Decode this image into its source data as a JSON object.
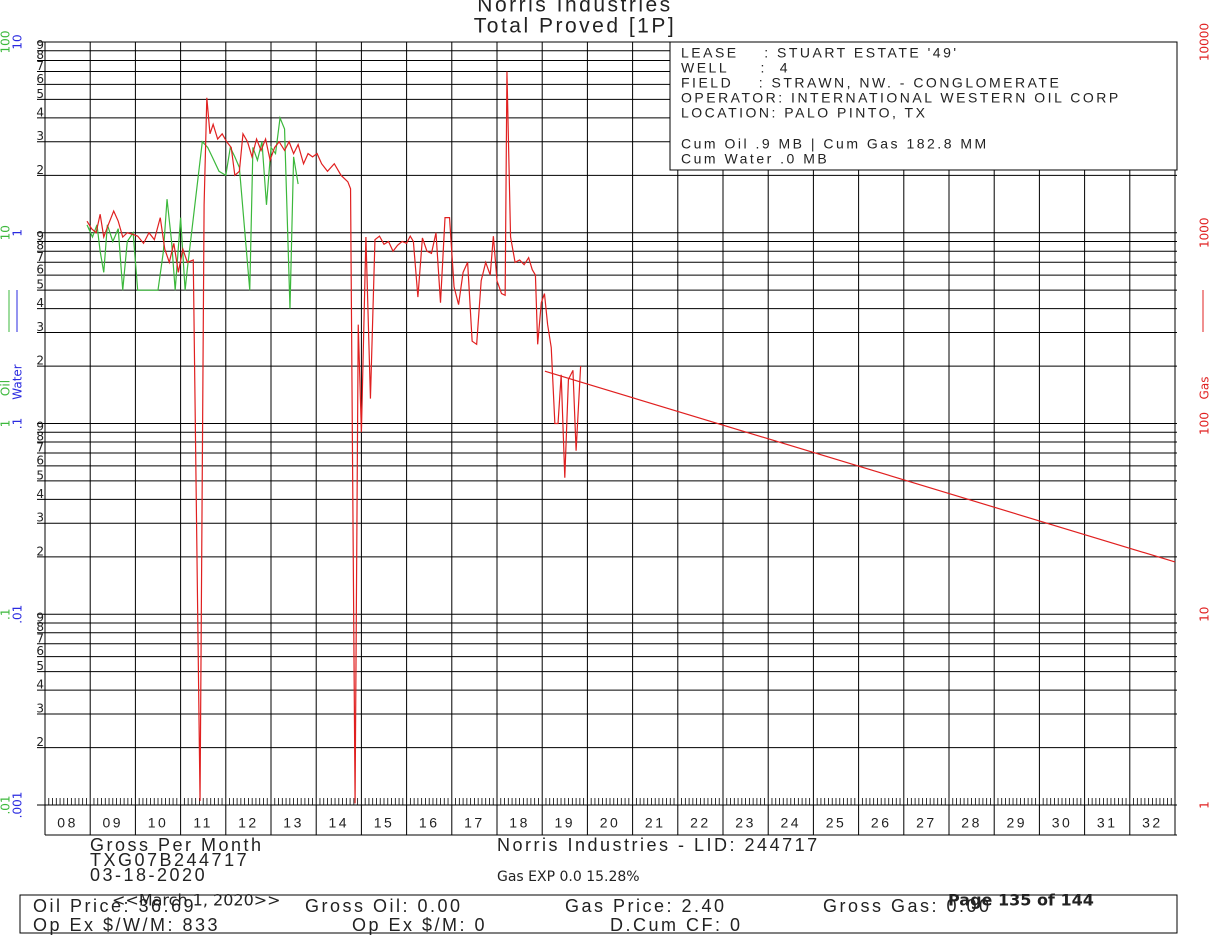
{
  "chart_data": {
    "type": "line",
    "title": "Norris Industries",
    "subtitle": "Total Proved [1P]",
    "log_scale": true,
    "grid": true,
    "xlim": [
      2008,
      2033
    ],
    "xticks": [
      {
        "value": 2008.5,
        "label": "08"
      },
      {
        "value": 2009.5,
        "label": "09"
      },
      {
        "value": 2010.5,
        "label": "10"
      },
      {
        "value": 2011.5,
        "label": "11"
      },
      {
        "value": 2012.5,
        "label": "12"
      },
      {
        "value": 2013.5,
        "label": "13"
      },
      {
        "value": 2014.5,
        "label": "14"
      },
      {
        "value": 2015.5,
        "label": "15"
      },
      {
        "value": 2016.5,
        "label": "16"
      },
      {
        "value": 2017.5,
        "label": "17"
      },
      {
        "value": 2018.5,
        "label": "18"
      },
      {
        "value": 2019.5,
        "label": "19"
      },
      {
        "value": 2020.5,
        "label": "20"
      },
      {
        "value": 2021.5,
        "label": "21"
      },
      {
        "value": 2022.5,
        "label": "22"
      },
      {
        "value": 2023.5,
        "label": "23"
      },
      {
        "value": 2024.5,
        "label": "24"
      },
      {
        "value": 2025.5,
        "label": "25"
      },
      {
        "value": 2026.5,
        "label": "26"
      },
      {
        "value": 2027.5,
        "label": "27"
      },
      {
        "value": 2028.5,
        "label": "28"
      },
      {
        "value": 2029.5,
        "label": "29"
      },
      {
        "value": 2030.5,
        "label": "30"
      },
      {
        "value": 2031.5,
        "label": "31"
      },
      {
        "value": 2032.5,
        "label": "32"
      }
    ],
    "ylabel": "Oil",
    "ylabel_color": "#3cb83c",
    "ylim": [
      0.01,
      100
    ],
    "yticks": [
      100,
      10,
      1,
      {
        "value": 0.1,
        "label": ".1"
      },
      {
        "value": 0.01,
        "label": ".01"
      }
    ],
    "water_axis": {
      "label": "Water",
      "color": "#2a2ae0",
      "ylim": [
        0.001,
        10
      ],
      "yticks": [
        10,
        1,
        {
          "value": 0.1,
          "label": ".1"
        },
        {
          "value": 0.01,
          "label": ".01"
        },
        {
          "value": 0.001,
          "label": ".001"
        }
      ]
    },
    "y2label": "Gas",
    "y2label_color": "#e02020",
    "y2lim": [
      1,
      10000
    ],
    "y2ticks": [
      10000,
      1000,
      100,
      10,
      1
    ],
    "minor_ticks": [
      2,
      3,
      4,
      5,
      6,
      7,
      8,
      9
    ],
    "series": [
      {
        "name": "Oil",
        "color": "#3cb83c",
        "axis": "y",
        "x": [
          2008.93,
          2009.05,
          2009.15,
          2009.22,
          2009.3,
          2009.38,
          2009.5,
          2009.62,
          2009.72,
          2009.82,
          2009.95,
          2010.05,
          2010.2,
          2010.35,
          2010.5,
          2010.62,
          2010.7,
          2010.8,
          2010.88,
          2011.0,
          2011.1,
          2011.15,
          2011.48,
          2011.6,
          2011.7,
          2011.85,
          2012.0,
          2012.1,
          2012.2,
          2012.3,
          2012.53,
          2012.6,
          2012.7,
          2012.8,
          2012.9,
          2013.0,
          2013.1,
          2013.2,
          2013.3,
          2013.42,
          2013.5,
          2013.6
        ],
        "values": [
          11,
          9.5,
          11,
          8,
          6.2,
          11,
          9,
          10.5,
          5,
          9,
          10,
          5,
          5,
          5,
          5,
          8,
          15,
          9,
          5,
          12,
          5,
          6.5,
          30,
          28,
          25,
          21,
          20,
          28,
          25,
          22,
          5,
          28,
          24,
          30,
          14,
          28,
          26,
          40,
          35,
          4,
          25,
          18
        ]
      },
      {
        "name": "Gas",
        "color": "#e02020",
        "axis": "y2",
        "x": [
          2008.93,
          2009.03,
          2009.13,
          2009.22,
          2009.3,
          2009.4,
          2009.52,
          2009.62,
          2009.72,
          2009.82,
          2009.95,
          2010.05,
          2010.18,
          2010.3,
          2010.42,
          2010.55,
          2010.65,
          2010.75,
          2010.85,
          2010.95,
          2011.05,
          2011.15,
          2011.28,
          2011.43,
          2011.52,
          2011.58,
          2011.65,
          2011.72,
          2011.82,
          2011.92,
          2012.02,
          2012.12,
          2012.2,
          2012.3,
          2012.38,
          2012.48,
          2012.58,
          2012.68,
          2012.78,
          2012.88,
          2012.98,
          2013.08,
          2013.18,
          2013.3,
          2013.4,
          2013.5,
          2013.6,
          2013.72,
          2013.82,
          2013.92,
          2014.02,
          2014.12,
          2014.25,
          2014.4,
          2014.55,
          2014.7,
          2014.76,
          2014.86,
          2014.93,
          2015.0,
          2015.1,
          2015.2,
          2015.3,
          2015.4,
          2015.5,
          2015.6,
          2015.7,
          2015.8,
          2015.9,
          2016.0,
          2016.08,
          2016.15,
          2016.25,
          2016.35,
          2016.45,
          2016.55,
          2016.65,
          2016.75,
          2016.85,
          2016.95,
          2017.05,
          2017.15,
          2017.25,
          2017.35,
          2017.45,
          2017.55,
          2017.65,
          2017.75,
          2017.85,
          2017.92,
          2018.0,
          2018.1,
          2018.18,
          2018.22,
          2018.3,
          2018.4,
          2018.5,
          2018.6,
          2018.7,
          2018.78,
          2018.85,
          2018.9,
          2018.98,
          2019.05,
          2019.12,
          2019.2,
          2019.28,
          2019.35,
          2019.42,
          2019.5,
          2019.58,
          2019.68,
          2019.75,
          2019.85
        ],
        "values": [
          1150,
          1050,
          1000,
          1250,
          950,
          1100,
          1300,
          1150,
          950,
          1000,
          980,
          960,
          880,
          1000,
          920,
          1200,
          820,
          700,
          880,
          620,
          820,
          700,
          720,
          1.05,
          1400,
          5100,
          3300,
          3700,
          3100,
          3300,
          3000,
          2800,
          2000,
          2100,
          3300,
          3000,
          2500,
          3100,
          2700,
          3100,
          2400,
          2800,
          3000,
          2700,
          3000,
          2600,
          2900,
          2300,
          2600,
          2500,
          2600,
          2300,
          2100,
          2300,
          2000,
          1850,
          1700,
          1.02,
          330,
          90,
          950,
          135,
          920,
          960,
          870,
          900,
          800,
          860,
          900,
          880,
          960,
          900,
          460,
          940,
          800,
          780,
          1000,
          430,
          1200,
          1200,
          520,
          420,
          620,
          700,
          270,
          260,
          560,
          700,
          600,
          960,
          560,
          480,
          470,
          7000,
          950,
          700,
          720,
          680,
          740,
          640,
          600,
          260,
          430,
          480,
          330,
          250,
          100,
          100,
          180,
          52,
          170,
          190,
          72,
          200
        ]
      },
      {
        "color": "#e02020",
        "axis": "y2",
        "x": [
          2019.06,
          2033.0
        ],
        "values": [
          188,
          18.8
        ]
      }
    ],
    "info": [
      "LEASE    : STUART ESTATE '49'",
      "WELL     :  4",
      "FIELD    : STRAWN, NW. - CONGLOMERATE",
      "OPERATOR: INTERNATIONAL WESTERN OIL CORP",
      "LOCATION: PALO PINTO, TX",
      "Cum Oil .9 MB | Cum Gas 182.8 MM",
      "Cum Water .0 MB"
    ],
    "footer": {
      "basis": "Gross Per Month",
      "well_id": "TXG07B244717",
      "date": "03-18-2020",
      "company_lid": "Norris Industries - LID: 244717",
      "gas_exp": "Gas EXP 0.0 15.28%",
      "oil_price": "Oil Price: 36.69",
      "gross_oil": "Gross Oil: 0.00",
      "gas_price": "Gas Price: 2.40",
      "gross_gas": "Gross Gas: 0.00",
      "opex_wm": "Op Ex $/W/M: 833",
      "opex_m": "Op Ex $/M: 0",
      "dcum_cf": "D.Cum CF: 0",
      "report_date": "<<March 1, 2020>>",
      "page": "Page 135 of 144"
    }
  }
}
